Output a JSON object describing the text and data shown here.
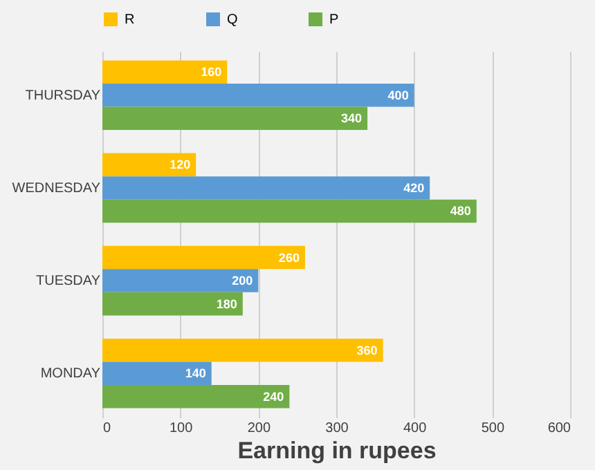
{
  "chart_data": {
    "type": "bar",
    "orientation": "horizontal",
    "xlabel": "Earning in rupees",
    "categories": [
      "THURSDAY",
      "WEDNESDAY",
      "TUESDAY",
      "MONDAY"
    ],
    "series": [
      {
        "name": "R",
        "color": "#ffc000",
        "values": [
          160,
          120,
          260,
          360
        ]
      },
      {
        "name": "Q",
        "color": "#5b9bd5",
        "values": [
          400,
          420,
          200,
          140
        ]
      },
      {
        "name": "P",
        "color": "#70ad47",
        "values": [
          340,
          480,
          180,
          240
        ]
      }
    ],
    "xlim": [
      0,
      600
    ],
    "xticks": [
      0,
      100,
      200,
      300,
      400,
      500,
      600
    ],
    "grid": "x",
    "legend": "top",
    "data_labels": true
  }
}
